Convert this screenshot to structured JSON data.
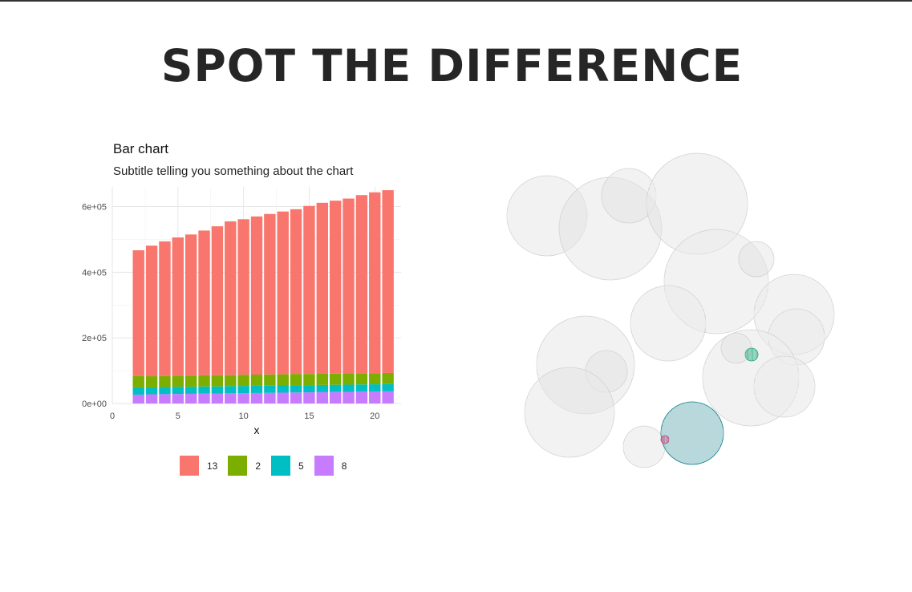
{
  "page": {
    "title": "SPOT THE DIFFERENCE"
  },
  "chart_data": [
    {
      "type": "bar",
      "stacked": true,
      "title": "Bar chart",
      "subtitle": "Subtitle telling you something about the chart",
      "xlabel": "x",
      "ylabel": "",
      "xlim": [
        0,
        22
      ],
      "ylim": [
        0,
        660000
      ],
      "xticks": [
        0,
        5,
        10,
        15,
        20
      ],
      "xtick_labels": [
        "0",
        "5",
        "10",
        "15",
        "20"
      ],
      "yticks": [
        0,
        200000,
        400000,
        600000
      ],
      "ytick_labels": [
        "0e+00",
        "2e+05",
        "4e+05",
        "6e+05"
      ],
      "grid": true,
      "legend_position": "bottom",
      "x": [
        2,
        3,
        4,
        5,
        6,
        7,
        8,
        9,
        10,
        11,
        12,
        13,
        14,
        15,
        16,
        17,
        18,
        19,
        20,
        21
      ],
      "series": [
        {
          "name": "8",
          "color": "#C77CFF",
          "values": [
            27000,
            28000,
            28500,
            29000,
            29500,
            30000,
            30500,
            31000,
            31500,
            32000,
            32500,
            33000,
            33500,
            34000,
            34500,
            35000,
            35500,
            36000,
            36500,
            37000
          ]
        },
        {
          "name": "5",
          "color": "#00BFC4",
          "values": [
            22000,
            21000,
            21500,
            22000,
            21500,
            22000,
            21500,
            22000,
            22000,
            22000,
            22000,
            22000,
            22500,
            22000,
            22000,
            22000,
            22000,
            22000,
            22000,
            22000
          ]
        },
        {
          "name": "2",
          "color": "#7CAE00",
          "values": [
            35000,
            34000,
            34000,
            34000,
            34000,
            34000,
            34000,
            33000,
            34000,
            34000,
            34000,
            34000,
            34000,
            34000,
            34000,
            34000,
            34000,
            34000,
            34000,
            34000
          ]
        },
        {
          "name": "13",
          "color": "#F8766D",
          "values": [
            383000,
            398000,
            410000,
            421000,
            430000,
            441000,
            454000,
            469000,
            474000,
            482000,
            489000,
            496000,
            502000,
            512000,
            521000,
            527000,
            533000,
            543000,
            551000,
            557000
          ]
        }
      ]
    },
    {
      "type": "bubble",
      "title": "",
      "grid": false,
      "axes_visible": false,
      "base_color": "#D3D3D3",
      "bubbles": [
        {
          "x": 62,
          "y": 89,
          "r": 50,
          "color": "#D3D3D3"
        },
        {
          "x": 141,
          "y": 105,
          "r": 64,
          "color": "#D3D3D3"
        },
        {
          "x": 164,
          "y": 64,
          "r": 34,
          "color": "#D3D3D3"
        },
        {
          "x": 249,
          "y": 74,
          "r": 63,
          "color": "#D3D3D3"
        },
        {
          "x": 273,
          "y": 171,
          "r": 65,
          "color": "#D3D3D3"
        },
        {
          "x": 323,
          "y": 143,
          "r": 22,
          "color": "#D3D3D3"
        },
        {
          "x": 370,
          "y": 212,
          "r": 50,
          "color": "#D3D3D3"
        },
        {
          "x": 373,
          "y": 240,
          "r": 35,
          "color": "#D3D3D3"
        },
        {
          "x": 213,
          "y": 223,
          "r": 47,
          "color": "#D3D3D3"
        },
        {
          "x": 110,
          "y": 275,
          "r": 61,
          "color": "#D3D3D3"
        },
        {
          "x": 136,
          "y": 283,
          "r": 26,
          "color": "#D3D3D3"
        },
        {
          "x": 90,
          "y": 334,
          "r": 56,
          "color": "#D3D3D3"
        },
        {
          "x": 316,
          "y": 291,
          "r": 60,
          "color": "#D3D3D3"
        },
        {
          "x": 298,
          "y": 254,
          "r": 19,
          "color": "#D3D3D3"
        },
        {
          "x": 358,
          "y": 302,
          "r": 38,
          "color": "#D3D3D3"
        },
        {
          "x": 183,
          "y": 377,
          "r": 26,
          "color": "#D3D3D3"
        },
        {
          "x": 243,
          "y": 360,
          "r": 39,
          "color": "#0F7F8A"
        },
        {
          "x": 317,
          "y": 262,
          "r": 8,
          "color": "#1FA77A"
        },
        {
          "x": 209,
          "y": 368,
          "r": 5,
          "color": "#C2457E"
        }
      ]
    }
  ]
}
